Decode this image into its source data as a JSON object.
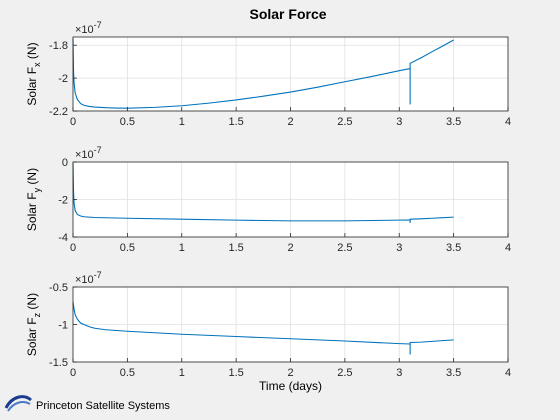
{
  "figure": {
    "title": "Solar Force",
    "background": "#f0f0f0",
    "axes_background": "#ffffff",
    "line_color": "#0072bd",
    "grid_color": "#e0e0e0"
  },
  "branding": {
    "company": "Princeton Satellite Systems",
    "logo_icon": "pss-swoosh-logo"
  },
  "chart_data": [
    {
      "type": "line",
      "ylabel": "Solar F_x (N)",
      "exponent_label": "×10^-7",
      "xlabel": "",
      "xlim": [
        0,
        4
      ],
      "ylim": [
        -2.2,
        -1.75
      ],
      "xticks": [
        0,
        0.5,
        1,
        1.5,
        2,
        2.5,
        3,
        3.5,
        4
      ],
      "yticks": [
        -2.2,
        -2,
        -1.8
      ],
      "grid": true,
      "x": [
        0,
        0.005,
        0.01,
        0.02,
        0.04,
        0.07,
        0.1,
        0.15,
        0.2,
        0.3,
        0.4,
        0.5,
        0.75,
        1.0,
        1.25,
        1.5,
        1.75,
        2.0,
        2.25,
        2.5,
        2.75,
        3.0,
        3.1,
        3.1,
        3.1,
        3.2,
        3.3,
        3.4,
        3.5
      ],
      "values": [
        -1.76,
        -1.96,
        -2.03,
        -2.09,
        -2.13,
        -2.155,
        -2.165,
        -2.172,
        -2.176,
        -2.18,
        -2.182,
        -2.183,
        -2.178,
        -2.168,
        -2.152,
        -2.133,
        -2.11,
        -2.085,
        -2.055,
        -2.022,
        -1.99,
        -1.955,
        -1.942,
        -2.16,
        -1.91,
        -1.877,
        -1.84,
        -1.805,
        -1.768
      ]
    },
    {
      "type": "line",
      "ylabel": "Solar F_y (N)",
      "exponent_label": "×10^-7",
      "xlabel": "",
      "xlim": [
        0,
        4
      ],
      "ylim": [
        -4,
        0
      ],
      "xticks": [
        0,
        0.5,
        1,
        1.5,
        2,
        2.5,
        3,
        3.5,
        4
      ],
      "yticks": [
        -4,
        -2,
        0
      ],
      "grid": true,
      "x": [
        0,
        0.005,
        0.01,
        0.02,
        0.04,
        0.07,
        0.1,
        0.2,
        0.5,
        1.0,
        1.5,
        2.0,
        2.5,
        3.0,
        3.1,
        3.1,
        3.1,
        3.2,
        3.3,
        3.4,
        3.5
      ],
      "values": [
        -0.05,
        -1.6,
        -2.2,
        -2.6,
        -2.8,
        -2.88,
        -2.92,
        -2.96,
        -3.0,
        -3.05,
        -3.1,
        -3.14,
        -3.14,
        -3.1,
        -3.09,
        -3.25,
        -3.05,
        -3.03,
        -3.0,
        -2.97,
        -2.94
      ]
    },
    {
      "type": "line",
      "ylabel": "Solar F_z (N)",
      "exponent_label": "×10^-7",
      "xlabel": "Time (days)",
      "xlim": [
        0,
        4
      ],
      "ylim": [
        -1.5,
        -0.5
      ],
      "xticks": [
        0,
        0.5,
        1,
        1.5,
        2,
        2.5,
        3,
        3.5,
        4
      ],
      "yticks": [
        -1.5,
        -1,
        -0.5
      ],
      "grid": true,
      "x": [
        0,
        0.005,
        0.01,
        0.02,
        0.04,
        0.07,
        0.1,
        0.15,
        0.2,
        0.3,
        0.5,
        0.75,
        1.0,
        1.5,
        2.0,
        2.5,
        3.0,
        3.1,
        3.1,
        3.1,
        3.2,
        3.3,
        3.4,
        3.5
      ],
      "values": [
        -0.7,
        -0.75,
        -0.8,
        -0.87,
        -0.93,
        -0.98,
        -1.0,
        -1.03,
        -1.05,
        -1.07,
        -1.09,
        -1.11,
        -1.13,
        -1.16,
        -1.19,
        -1.22,
        -1.255,
        -1.26,
        -1.4,
        -1.24,
        -1.235,
        -1.225,
        -1.215,
        -1.205
      ]
    }
  ]
}
